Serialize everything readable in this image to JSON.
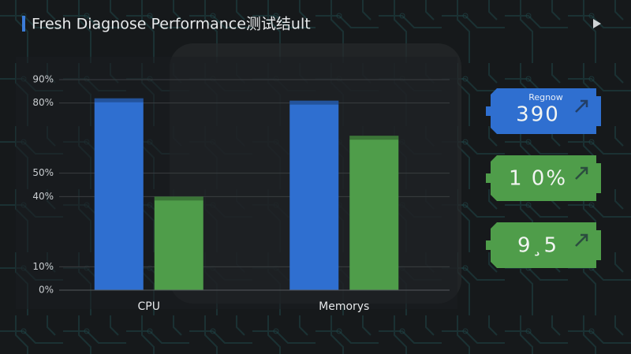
{
  "chart_data": {
    "type": "bar",
    "title": "Fresh Diagnose Performance测试结ult",
    "categories": [
      "CPU",
      "Memorys"
    ],
    "series": [
      {
        "color": "#2f6fd0",
        "values": [
          82,
          81
        ]
      },
      {
        "color": "#4f9d4a",
        "values": [
          40,
          66
        ]
      }
    ],
    "ylim": [
      0,
      90
    ],
    "yticks": [
      {
        "value": 0,
        "label": "0%"
      },
      {
        "value": 10,
        "label": "10%"
      },
      {
        "value": 40,
        "label": "40%"
      },
      {
        "value": 50,
        "label": "50%"
      },
      {
        "value": 80,
        "label": "80%"
      },
      {
        "value": 90,
        "label": "90%"
      }
    ],
    "grid": true
  },
  "cards": [
    {
      "label": "Regnow",
      "value": "390"
    },
    {
      "value": "1 0%"
    },
    {
      "value": "9¸5"
    }
  ]
}
